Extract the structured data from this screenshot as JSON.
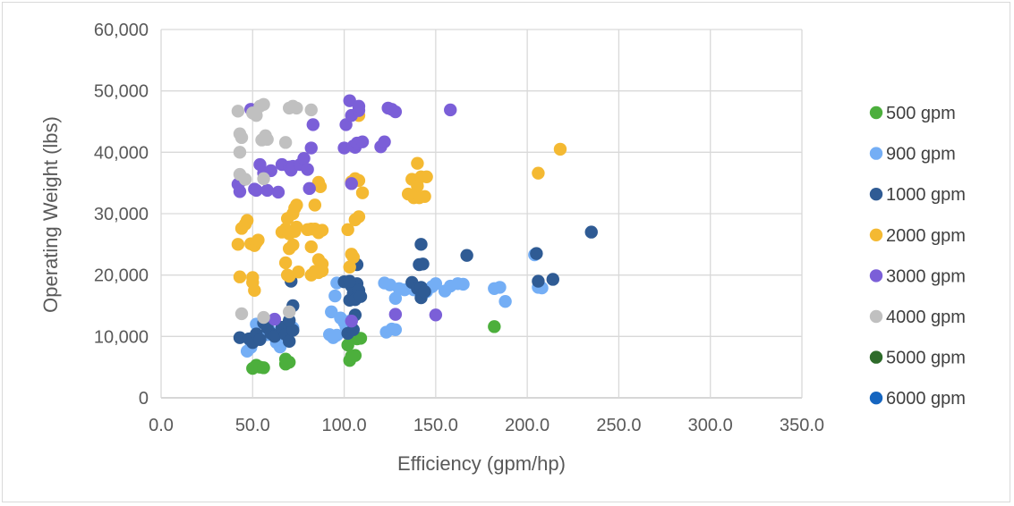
{
  "chart_data": {
    "type": "scatter",
    "title": "",
    "xlabel": "Efficiency (gpm/hp)",
    "ylabel": "Operating Weight (lbs)",
    "xlim": [
      0,
      350
    ],
    "ylim": [
      0,
      60000
    ],
    "x_ticks": [
      "0.0",
      "50.0",
      "100.0",
      "150.0",
      "200.0",
      "250.0",
      "300.0",
      "350.0"
    ],
    "y_ticks": [
      "0",
      "10,000",
      "20,000",
      "30,000",
      "40,000",
      "50,000",
      "60,000"
    ],
    "grid": true,
    "legend_position": "right",
    "series": [
      {
        "name": "500 gpm",
        "color": "#4caf3c",
        "points": [
          [
            50,
            4800
          ],
          [
            52,
            5300
          ],
          [
            54,
            5000
          ],
          [
            56,
            4900
          ],
          [
            68,
            6300
          ],
          [
            70,
            5800
          ],
          [
            68,
            5500
          ],
          [
            102,
            8600
          ],
          [
            103,
            6100
          ],
          [
            104,
            6800
          ],
          [
            106,
            6900
          ],
          [
            107,
            9600
          ],
          [
            109,
            9700
          ],
          [
            182,
            11600
          ]
        ]
      },
      {
        "name": "900 gpm",
        "color": "#74aef5",
        "points": [
          [
            47,
            7600
          ],
          [
            49,
            8200
          ],
          [
            52,
            12000
          ],
          [
            58,
            10300
          ],
          [
            60,
            10800
          ],
          [
            63,
            9000
          ],
          [
            65,
            8300
          ],
          [
            68,
            10900
          ],
          [
            72,
            11400
          ],
          [
            92,
            10300
          ],
          [
            94,
            9800
          ],
          [
            96,
            10200
          ],
          [
            93,
            14000
          ],
          [
            95,
            16600
          ],
          [
            96,
            18700
          ],
          [
            98,
            13000
          ],
          [
            100,
            12300
          ],
          [
            101,
            11600
          ],
          [
            103,
            12500
          ],
          [
            123,
            10700
          ],
          [
            126,
            11200
          ],
          [
            128,
            11100
          ],
          [
            122,
            18700
          ],
          [
            125,
            18400
          ],
          [
            128,
            16200
          ],
          [
            130,
            17800
          ],
          [
            133,
            17600
          ],
          [
            138,
            17600
          ],
          [
            145,
            17300
          ],
          [
            148,
            18100
          ],
          [
            150,
            18600
          ],
          [
            155,
            17400
          ],
          [
            158,
            18200
          ],
          [
            162,
            18600
          ],
          [
            165,
            18500
          ],
          [
            182,
            17800
          ],
          [
            185,
            18000
          ],
          [
            188,
            15700
          ],
          [
            204,
            23300
          ],
          [
            206,
            18000
          ],
          [
            208,
            17900
          ]
        ]
      },
      {
        "name": "1000 gpm",
        "color": "#2f5b94",
        "points": [
          [
            43,
            9800
          ],
          [
            48,
            9600
          ],
          [
            50,
            9000
          ],
          [
            52,
            10400
          ],
          [
            54,
            9500
          ],
          [
            56,
            12200
          ],
          [
            58,
            11400
          ],
          [
            60,
            10500
          ],
          [
            62,
            10000
          ],
          [
            66,
            11500
          ],
          [
            68,
            10300
          ],
          [
            70,
            9200
          ],
          [
            72,
            11000
          ],
          [
            70,
            12600
          ],
          [
            71,
            19000
          ],
          [
            72,
            15000
          ],
          [
            100,
            18900
          ],
          [
            102,
            10500
          ],
          [
            103,
            15900
          ],
          [
            104,
            18200
          ],
          [
            105,
            17000
          ],
          [
            106,
            16000
          ],
          [
            107,
            18600
          ],
          [
            108,
            17500
          ],
          [
            109,
            16500
          ],
          [
            105,
            11100
          ],
          [
            106,
            13500
          ],
          [
            107,
            21700
          ],
          [
            103,
            19000
          ],
          [
            137,
            18800
          ],
          [
            140,
            17800
          ],
          [
            142,
            16300
          ],
          [
            142,
            18000
          ],
          [
            144,
            17300
          ],
          [
            141,
            21700
          ],
          [
            142,
            25000
          ],
          [
            143,
            21800
          ],
          [
            167,
            23200
          ],
          [
            205,
            23500
          ],
          [
            206,
            19000
          ],
          [
            214,
            19300
          ],
          [
            235,
            27000
          ]
        ]
      },
      {
        "name": "2000 gpm",
        "color": "#f4b932",
        "points": [
          [
            42,
            25000
          ],
          [
            43,
            19700
          ],
          [
            44,
            27600
          ],
          [
            46,
            28300
          ],
          [
            47,
            28900
          ],
          [
            49,
            25100
          ],
          [
            50,
            19600
          ],
          [
            51,
            24800
          ],
          [
            52,
            25300
          ],
          [
            53,
            25700
          ],
          [
            50,
            18800
          ],
          [
            51,
            17500
          ],
          [
            66,
            27000
          ],
          [
            68,
            27500
          ],
          [
            69,
            29200
          ],
          [
            70,
            24300
          ],
          [
            68,
            22000
          ],
          [
            69,
            20000
          ],
          [
            70,
            19800
          ],
          [
            70,
            26700
          ],
          [
            72,
            24900
          ],
          [
            73,
            27100
          ],
          [
            74,
            27800
          ],
          [
            75,
            20500
          ],
          [
            72,
            30000
          ],
          [
            73,
            30900
          ],
          [
            74,
            31400
          ],
          [
            80,
            27400
          ],
          [
            82,
            27500
          ],
          [
            84,
            27500
          ],
          [
            86,
            26900
          ],
          [
            88,
            27300
          ],
          [
            82,
            24600
          ],
          [
            84,
            31400
          ],
          [
            86,
            35100
          ],
          [
            87,
            34400
          ],
          [
            86,
            22500
          ],
          [
            88,
            21800
          ],
          [
            82,
            20000
          ],
          [
            84,
            20600
          ],
          [
            86,
            20400
          ],
          [
            88,
            20700
          ],
          [
            102,
            27400
          ],
          [
            104,
            23400
          ],
          [
            105,
            22900
          ],
          [
            103,
            21300
          ],
          [
            104,
            35200
          ],
          [
            106,
            35700
          ],
          [
            108,
            35400
          ],
          [
            110,
            33400
          ],
          [
            106,
            29000
          ],
          [
            108,
            29500
          ],
          [
            108,
            46000
          ],
          [
            135,
            33200
          ],
          [
            137,
            35600
          ],
          [
            138,
            32600
          ],
          [
            140,
            34500
          ],
          [
            141,
            32600
          ],
          [
            142,
            36000
          ],
          [
            140,
            38200
          ],
          [
            144,
            32800
          ],
          [
            145,
            36000
          ],
          [
            206,
            36600
          ],
          [
            218,
            40500
          ]
        ]
      },
      {
        "name": "3000 gpm",
        "color": "#7b5fd8",
        "points": [
          [
            42,
            34800
          ],
          [
            43,
            33600
          ],
          [
            44,
            35400
          ],
          [
            49,
            47000
          ],
          [
            51,
            34000
          ],
          [
            52,
            33800
          ],
          [
            54,
            38000
          ],
          [
            56,
            36600
          ],
          [
            58,
            33800
          ],
          [
            60,
            37000
          ],
          [
            64,
            33500
          ],
          [
            66,
            38000
          ],
          [
            70,
            37600
          ],
          [
            71,
            37100
          ],
          [
            72,
            37700
          ],
          [
            76,
            38000
          ],
          [
            78,
            39000
          ],
          [
            80,
            37200
          ],
          [
            81,
            34100
          ],
          [
            82,
            40700
          ],
          [
            83,
            44500
          ],
          [
            100,
            40700
          ],
          [
            101,
            44500
          ],
          [
            103,
            48400
          ],
          [
            104,
            46000
          ],
          [
            105,
            41000
          ],
          [
            106,
            40800
          ],
          [
            107,
            41500
          ],
          [
            108,
            46800
          ],
          [
            108,
            47500
          ],
          [
            110,
            41700
          ],
          [
            104,
            34900
          ],
          [
            120,
            40900
          ],
          [
            122,
            41700
          ],
          [
            124,
            47200
          ],
          [
            126,
            47000
          ],
          [
            128,
            46600
          ],
          [
            104,
            12500
          ],
          [
            128,
            13600
          ],
          [
            150,
            13500
          ],
          [
            158,
            46900
          ],
          [
            62,
            12800
          ]
        ]
      },
      {
        "name": "4000 gpm",
        "color": "#c0c0c0",
        "points": [
          [
            42,
            46700
          ],
          [
            43,
            43000
          ],
          [
            44,
            42400
          ],
          [
            43,
            40000
          ],
          [
            43,
            36400
          ],
          [
            46,
            35600
          ],
          [
            50,
            46400
          ],
          [
            52,
            46000
          ],
          [
            54,
            47500
          ],
          [
            56,
            47800
          ],
          [
            55,
            42000
          ],
          [
            57,
            42700
          ],
          [
            58,
            42100
          ],
          [
            56,
            35700
          ],
          [
            68,
            41600
          ],
          [
            70,
            47200
          ],
          [
            72,
            47500
          ],
          [
            74,
            47200
          ],
          [
            82,
            46900
          ],
          [
            56,
            13100
          ],
          [
            44,
            13700
          ],
          [
            70,
            14000
          ]
        ]
      },
      {
        "name": "5000 gpm",
        "color": "#2e6b2a",
        "points": []
      },
      {
        "name": "6000 gpm",
        "color": "#1565c0",
        "points": []
      }
    ]
  }
}
